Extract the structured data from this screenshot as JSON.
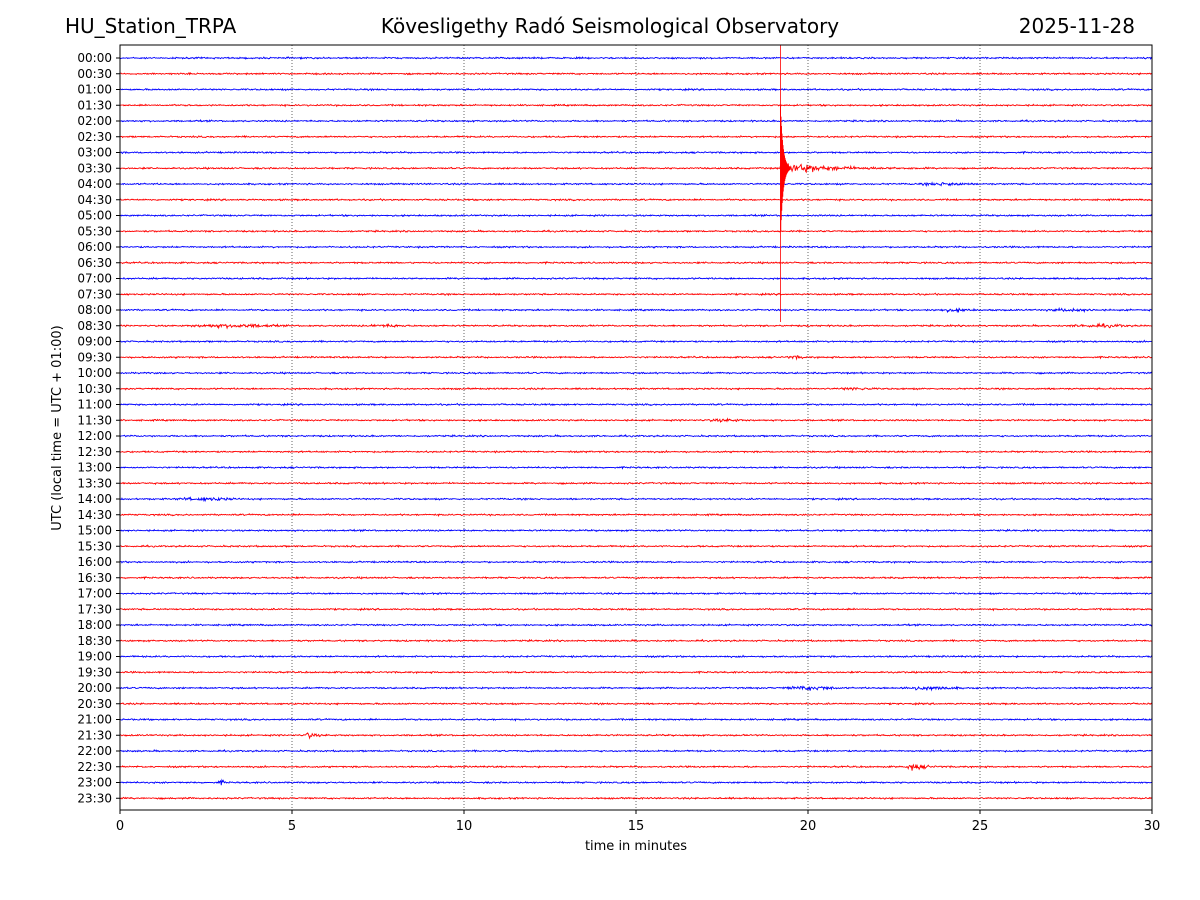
{
  "header": {
    "station": "HU_Station_TRPA",
    "observatory": "Kövesligethy Radó Seismological Observatory",
    "date": "2025-11-28"
  },
  "chart_data": {
    "type": "line",
    "title": "Kövesligethy Radó Seismological Observatory",
    "xlabel": "time in minutes",
    "ylabel": "UTC (local time = UTC + 01:00)",
    "xlim": [
      0,
      30
    ],
    "x_ticks": [
      0,
      5,
      10,
      15,
      20,
      25,
      30
    ],
    "grid": "vertical dotted at x ticks",
    "row_colors": [
      "#0000ff",
      "#ff0000"
    ],
    "row_labels": [
      "00:00",
      "00:30",
      "01:00",
      "01:30",
      "02:00",
      "02:30",
      "03:00",
      "03:30",
      "04:00",
      "04:30",
      "05:00",
      "05:30",
      "06:00",
      "06:30",
      "07:00",
      "07:30",
      "08:00",
      "08:30",
      "09:00",
      "09:30",
      "10:00",
      "10:30",
      "11:00",
      "11:30",
      "12:00",
      "12:30",
      "13:00",
      "13:30",
      "14:00",
      "14:30",
      "15:00",
      "15:30",
      "16:00",
      "16:30",
      "17:00",
      "17:30",
      "18:00",
      "18:30",
      "19:00",
      "19:30",
      "20:00",
      "20:30",
      "21:00",
      "21:30",
      "22:00",
      "22:30",
      "23:00",
      "23:30"
    ],
    "events": [
      {
        "row": 7,
        "start_min": 19.2,
        "end_min": 23.5,
        "amplitude": 9,
        "type": "quake"
      },
      {
        "row": 8,
        "start_min": 23.2,
        "end_min": 24.8,
        "amplitude": 1.6,
        "type": "burst"
      },
      {
        "row": 17,
        "start_min": 1.8,
        "end_min": 4.8,
        "amplitude": 1.8,
        "type": "burst"
      },
      {
        "row": 17,
        "start_min": 7.0,
        "end_min": 8.5,
        "amplitude": 1.2,
        "type": "burst"
      },
      {
        "row": 17,
        "start_min": 27.5,
        "end_min": 29.5,
        "amplitude": 1.4,
        "type": "burst"
      },
      {
        "row": 16,
        "start_min": 23.5,
        "end_min": 25.0,
        "amplitude": 1.2,
        "type": "burst"
      },
      {
        "row": 16,
        "start_min": 26.8,
        "end_min": 28.5,
        "amplitude": 1.2,
        "type": "burst"
      },
      {
        "row": 19,
        "start_min": 19.3,
        "end_min": 20.0,
        "amplitude": 1.3,
        "type": "burst"
      },
      {
        "row": 21,
        "start_min": 20.8,
        "end_min": 22.0,
        "amplitude": 1.2,
        "type": "burst"
      },
      {
        "row": 23,
        "start_min": 17.0,
        "end_min": 18.2,
        "amplitude": 1.4,
        "type": "burst"
      },
      {
        "row": 28,
        "start_min": 1.5,
        "end_min": 3.5,
        "amplitude": 1.5,
        "type": "burst"
      },
      {
        "row": 40,
        "start_min": 19.2,
        "end_min": 21.0,
        "amplitude": 2.0,
        "type": "burst"
      },
      {
        "row": 40,
        "start_min": 22.5,
        "end_min": 24.5,
        "amplitude": 1.8,
        "type": "burst"
      },
      {
        "row": 43,
        "start_min": 5.4,
        "end_min": 6.2,
        "amplitude": 5,
        "type": "quake"
      },
      {
        "row": 45,
        "start_min": 22.9,
        "end_min": 24.2,
        "amplitude": 6,
        "type": "quake"
      },
      {
        "row": 46,
        "start_min": 2.8,
        "end_min": 3.1,
        "amplitude": 2.0,
        "type": "burst"
      }
    ]
  }
}
